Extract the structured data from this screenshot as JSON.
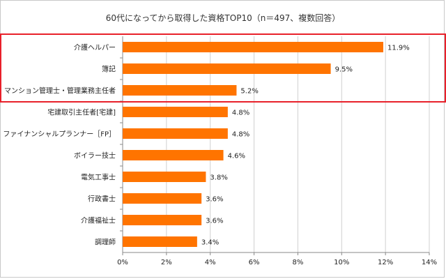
{
  "chart_data": {
    "type": "bar",
    "orientation": "horizontal",
    "title": "60代になってから取得した資格TOP10（n＝497、複数回答）",
    "categories": [
      "介護ヘルパー",
      "簿記",
      "マンション管理士・管理業務主任者",
      "宅建取引主任者[宅建]",
      "ファイナンシャルプランナー［FP］",
      "ボイラー技士",
      "電気工事士",
      "行政書士",
      "介護福祉士",
      "調理師"
    ],
    "values": [
      11.9,
      9.5,
      5.2,
      4.8,
      4.8,
      4.6,
      3.8,
      3.6,
      3.6,
      3.4
    ],
    "value_labels": [
      "11.9%",
      "9.5%",
      "5.2%",
      "4.8%",
      "4.8%",
      "4.6%",
      "3.8%",
      "3.6%",
      "3.6%",
      "3.4%"
    ],
    "xlim": [
      0,
      14
    ],
    "x_ticks": [
      "0%",
      "2%",
      "4%",
      "6%",
      "8%",
      "10%",
      "12%",
      "14%"
    ],
    "grid": true,
    "bar_color": "#ff7400",
    "highlight_color": "#e8202a",
    "highlight_categories": [
      "介護ヘルパー",
      "簿記",
      "マンション管理士・管理業務主任者"
    ]
  }
}
